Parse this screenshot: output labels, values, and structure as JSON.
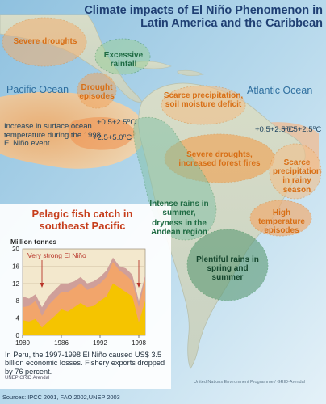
{
  "title": "Climate impacts of El Niño Phenomenon in Latin America and the Caribbean",
  "oceans": {
    "pacific": "Pacific Ocean",
    "atlantic": "Atlantic Ocean"
  },
  "regions": {
    "severe_droughts": "Severe droughts",
    "excessive_rainfall": "Excessive rainfall",
    "drought_episodes": "Drought episodes",
    "scarce_precip_soil": "Scarce precipitation, soil moisture deficit",
    "severe_droughts_fires": "Severe droughts, increased forest fires",
    "scarce_precip_rainy": "Scarce precipitation in rainy season",
    "high_temp": "High temperature episodes",
    "intense_rains": "Intense rains in summer,",
    "dryness_andean": "dryness in the Andean region",
    "plentiful_rains": "Plentiful rains in spring and summer"
  },
  "temperature": {
    "sst_note": "Increase in surface ocean temperature during the 1998 El Niño event",
    "pacific_a": "+0.5+2.5⁰C",
    "pacific_b": "+2.5+5.0⁰C",
    "atlantic_a": "+0.5+2.5⁰C",
    "atlantic_b": "+0.5+2.5⁰C"
  },
  "chart_title": "Pelagic fish catch in southeast Pacific",
  "chart_data": {
    "type": "area",
    "title": "Pelagic fish catch in southeast Pacific",
    "ylabel": "Million tonnes",
    "ylim": [
      0,
      20
    ],
    "yticks": [
      0,
      4,
      8,
      12,
      16,
      20
    ],
    "xlim": [
      1980,
      1999
    ],
    "xticks": [
      1980,
      1986,
      1992,
      1998
    ],
    "x": [
      1980,
      1981,
      1982,
      1983,
      1984,
      1985,
      1986,
      1987,
      1988,
      1989,
      1990,
      1991,
      1992,
      1993,
      1994,
      1995,
      1996,
      1997,
      1998,
      1999
    ],
    "series": [
      {
        "color": "#f5c400",
        "values": [
          3.5,
          3.2,
          3.8,
          1.8,
          3.2,
          4.5,
          6,
          5.5,
          6.5,
          7.5,
          6.5,
          6.8,
          8,
          9,
          12,
          11,
          10,
          9,
          3,
          8
        ]
      },
      {
        "color": "#f2a56b",
        "values": [
          6.5,
          6.8,
          8,
          4.5,
          7,
          8.5,
          10,
          10,
          11,
          12,
          10.5,
          11,
          12,
          13.5,
          17,
          15,
          14,
          12.5,
          6.5,
          13
        ]
      },
      {
        "color": "#cf9f9a",
        "values": [
          9,
          8.5,
          9.5,
          6.5,
          9,
          10.5,
          12,
          12,
          12.5,
          13.5,
          12,
          12.5,
          13.5,
          15,
          18,
          16,
          15.5,
          14,
          8,
          14
        ]
      }
    ],
    "annotation": "Very strong El Niño",
    "events": [
      1983,
      1998
    ]
  },
  "footnote": "In Peru, the 1997-1998 El Niño caused US$ 3.5 billion economic losses. Fishery exports dropped by 76 percent.",
  "sources": "Sources: IPCC 2001, FAO 2002,UNEP 2003",
  "credit": "United Nations Environment Programme / GRID-Arendal",
  "logos": "UNEP GRID Arendal"
}
